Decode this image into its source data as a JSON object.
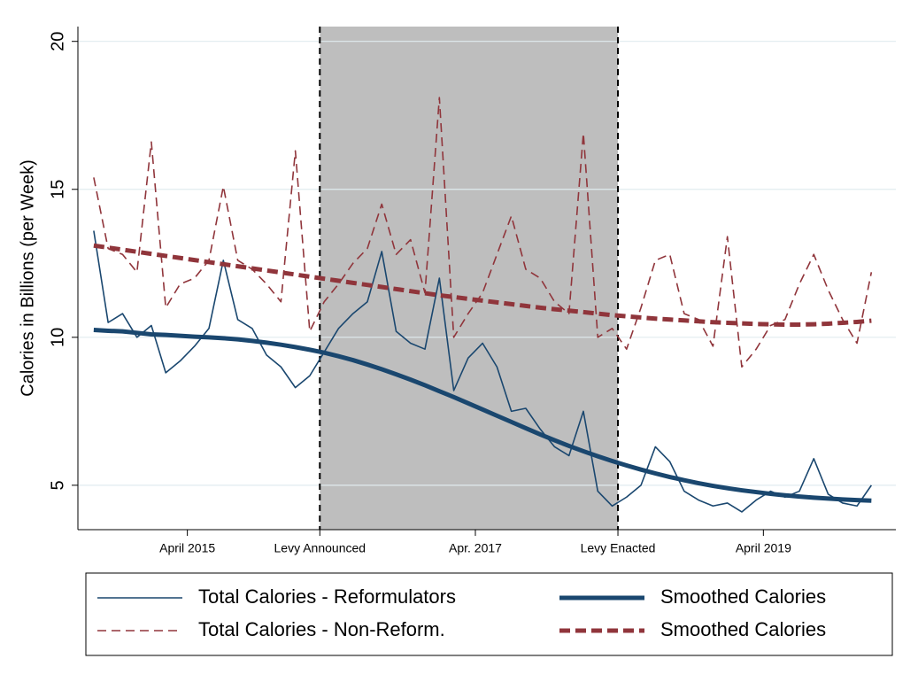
{
  "chart_data": {
    "type": "line",
    "y_label": "Calories in Billions (per Week)",
    "x": [
      2014.6,
      2014.7,
      2014.8,
      2014.9,
      2015.0,
      2015.1,
      2015.2,
      2015.3,
      2015.4,
      2015.5,
      2015.6,
      2015.7,
      2015.8,
      2015.9,
      2016.0,
      2016.1,
      2016.2,
      2016.3,
      2016.4,
      2016.5,
      2016.6,
      2016.7,
      2016.8,
      2016.9,
      2017.0,
      2017.1,
      2017.2,
      2017.3,
      2017.4,
      2017.5,
      2017.6,
      2017.7,
      2017.8,
      2017.9,
      2018.0,
      2018.1,
      2018.2,
      2018.3,
      2018.4,
      2018.5,
      2018.6,
      2018.7,
      2018.8,
      2018.9,
      2019.0,
      2019.1,
      2019.2,
      2019.3,
      2019.4,
      2019.5,
      2019.6,
      2019.7,
      2019.8,
      2019.9,
      2020.0
    ],
    "series": [
      {
        "name": "Total Calories - Reformulators",
        "color": "#1a476f",
        "weight": "thin",
        "dash": false,
        "values": [
          13.6,
          10.5,
          10.8,
          10.0,
          10.4,
          8.8,
          9.2,
          9.7,
          10.3,
          12.6,
          10.6,
          10.3,
          9.4,
          9.0,
          8.3,
          8.7,
          9.5,
          10.3,
          10.8,
          11.2,
          12.9,
          10.2,
          9.8,
          9.6,
          12.0,
          8.2,
          9.3,
          9.8,
          9.0,
          7.5,
          7.6,
          6.9,
          6.3,
          6.0,
          7.5,
          4.8,
          4.3,
          4.6,
          5.0,
          6.3,
          5.8,
          4.8,
          4.5,
          4.3,
          4.4,
          4.1,
          4.5,
          4.8,
          4.6,
          4.8,
          5.9,
          4.7,
          4.4,
          4.3,
          5.0
        ]
      },
      {
        "name": "Smoothed Calories",
        "color": "#1a476f",
        "weight": "thick",
        "dash": false,
        "values": [
          10.25,
          10.22,
          10.2,
          10.15,
          10.1,
          10.08,
          10.05,
          10.02,
          10.0,
          9.97,
          9.93,
          9.88,
          9.82,
          9.75,
          9.67,
          9.58,
          9.48,
          9.36,
          9.23,
          9.08,
          8.92,
          8.75,
          8.57,
          8.38,
          8.18,
          7.98,
          7.77,
          7.56,
          7.35,
          7.14,
          6.93,
          6.72,
          6.52,
          6.33,
          6.15,
          5.98,
          5.82,
          5.67,
          5.53,
          5.4,
          5.28,
          5.17,
          5.07,
          4.98,
          4.9,
          4.83,
          4.77,
          4.71,
          4.66,
          4.62,
          4.58,
          4.55,
          4.52,
          4.5,
          4.48
        ]
      },
      {
        "name": "Total Calories - Non-Reform.",
        "color": "#90353b",
        "weight": "thin",
        "dash": true,
        "values": [
          15.4,
          13.0,
          12.8,
          12.2,
          16.6,
          11.0,
          11.8,
          12.0,
          12.6,
          15.1,
          12.6,
          12.3,
          11.8,
          11.2,
          16.3,
          10.2,
          11.2,
          11.8,
          12.5,
          13.0,
          14.5,
          12.8,
          13.3,
          11.5,
          18.1,
          10.0,
          10.8,
          11.5,
          12.8,
          14.1,
          12.3,
          12.0,
          11.2,
          10.8,
          16.9,
          10.0,
          10.3,
          9.6,
          11.0,
          12.6,
          12.8,
          10.8,
          10.6,
          9.7,
          13.4,
          9.0,
          9.6,
          10.4,
          10.6,
          11.8,
          12.8,
          11.6,
          10.6,
          9.8,
          12.2
        ]
      },
      {
        "name": "Smoothed Calories",
        "color": "#90353b",
        "weight": "thick",
        "dash": true,
        "values": [
          13.1,
          13.03,
          12.96,
          12.89,
          12.82,
          12.75,
          12.68,
          12.61,
          12.54,
          12.47,
          12.4,
          12.33,
          12.26,
          12.19,
          12.12,
          12.05,
          11.98,
          11.91,
          11.84,
          11.77,
          11.7,
          11.63,
          11.56,
          11.49,
          11.42,
          11.36,
          11.3,
          11.24,
          11.18,
          11.12,
          11.06,
          11.0,
          10.95,
          10.9,
          10.85,
          10.8,
          10.75,
          10.71,
          10.67,
          10.63,
          10.6,
          10.57,
          10.54,
          10.51,
          10.49,
          10.47,
          10.45,
          10.44,
          10.43,
          10.43,
          10.44,
          10.46,
          10.49,
          10.52,
          10.56
        ]
      }
    ],
    "xlim": [
      2014.49,
      2020.17
    ],
    "xticks": [
      {
        "value": 2015.25,
        "label": "April 2015"
      },
      {
        "value": 2016.17,
        "label": "Levy Announced"
      },
      {
        "value": 2017.25,
        "label": "Apr. 2017"
      },
      {
        "value": 2018.24,
        "label": "Levy Enacted"
      },
      {
        "value": 2019.25,
        "label": "April 2019"
      }
    ],
    "ylim": [
      3.5,
      20.5
    ],
    "yticks": [
      5,
      10,
      15,
      20
    ],
    "shade": [
      2016.17,
      2018.24
    ],
    "shade_color": "#bebebe",
    "grid": true,
    "legend_position": "bottom"
  }
}
